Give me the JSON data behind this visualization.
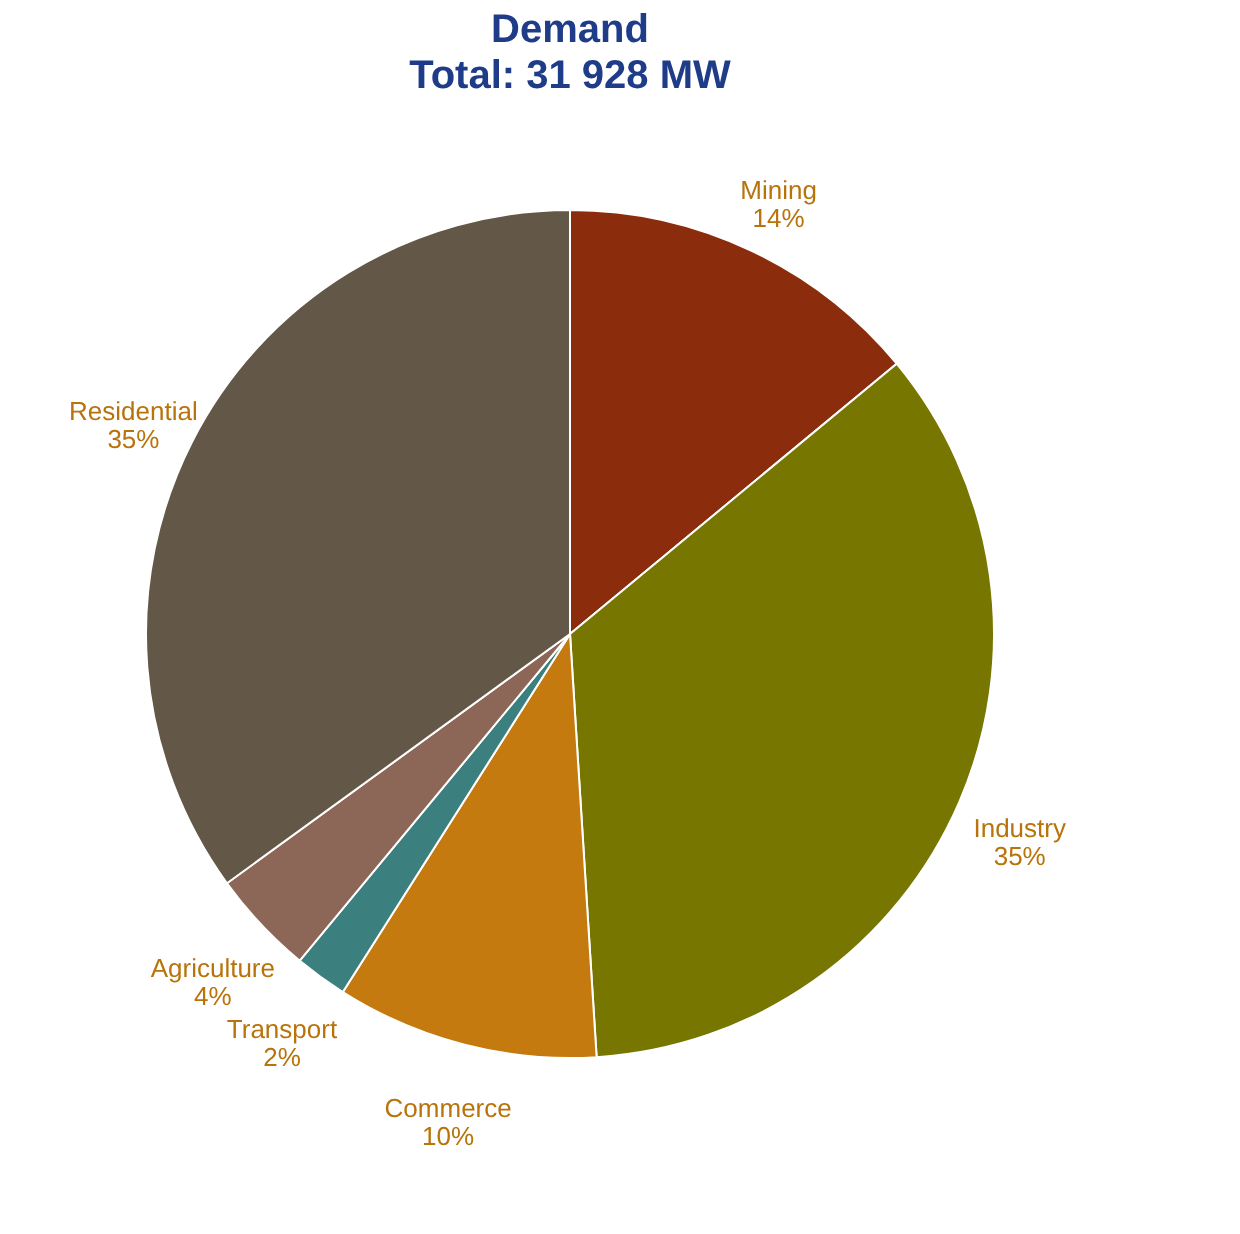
{
  "chart_data": {
    "type": "pie",
    "title": "Demand",
    "subtitle": "Total: 31 928 MW",
    "categories": [
      "Mining",
      "Industry",
      "Commerce",
      "Transport",
      "Agriculture",
      "Residential"
    ],
    "values": [
      14,
      35,
      10,
      2,
      4,
      35
    ],
    "value_labels": [
      "14%",
      "35%",
      "10%",
      "2%",
      "4%",
      "35%"
    ],
    "colors": [
      "#8b2c0c",
      "#767600",
      "#c47a0e",
      "#3b7f7e",
      "#8c6656",
      "#635747"
    ],
    "legend": false
  }
}
